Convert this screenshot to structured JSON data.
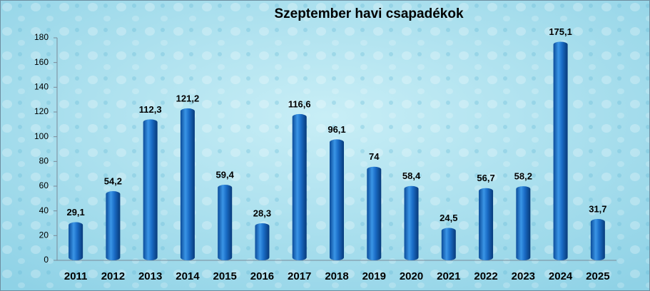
{
  "chart_data": {
    "type": "bar",
    "title": "Szeptember havi csapadékok",
    "categories": [
      "2011",
      "2012",
      "2013",
      "2014",
      "2015",
      "2016",
      "2017",
      "2018",
      "2019",
      "2020",
      "2021",
      "2022",
      "2023",
      "2024",
      "2025"
    ],
    "values": [
      29.1,
      54.2,
      112.3,
      121.2,
      59.4,
      28.3,
      116.6,
      96.1,
      74,
      58.4,
      24.5,
      56.7,
      58.2,
      175.1,
      31.7
    ],
    "value_labels": [
      "29,1",
      "54,2",
      "112,3",
      "121,2",
      "59,4",
      "28,3",
      "116,6",
      "96,1",
      "74",
      "58,4",
      "24,5",
      "56,7",
      "58,2",
      "175,1",
      "31,7"
    ],
    "color": "#1f6fc4",
    "ylim": [
      0,
      180
    ],
    "yticks": [
      0,
      20,
      40,
      60,
      80,
      100,
      120,
      140,
      160,
      180
    ],
    "grid": false
  }
}
